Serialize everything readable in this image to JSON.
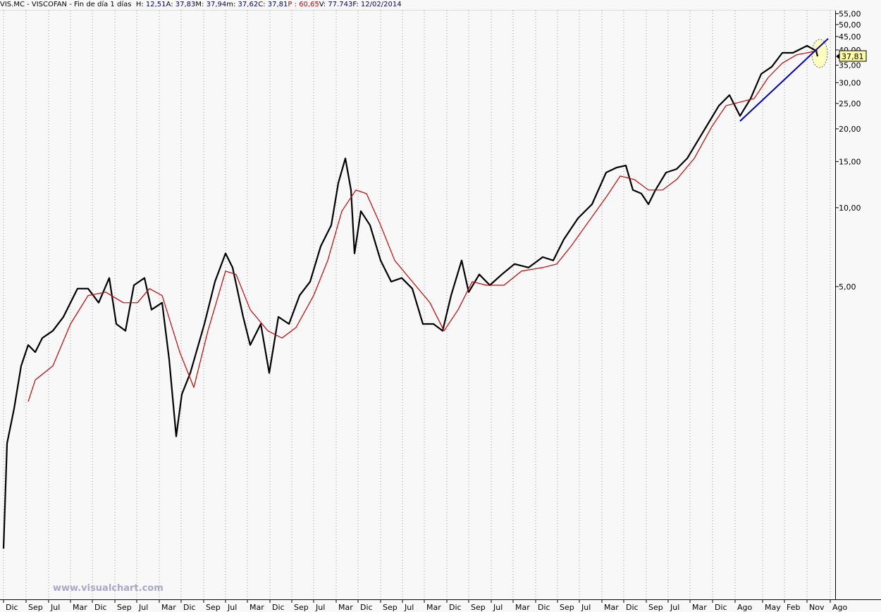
{
  "chart_data": {
    "type": "line",
    "title": "VIS.MC - VISCOFAN - Fin de día 1 días",
    "header_items": [
      {
        "label": "H:",
        "value": "12,51"
      },
      {
        "label": "A:",
        "value": "37,83"
      },
      {
        "label": "M:",
        "value": "37,94"
      },
      {
        "label": "m:",
        "value": "37,62"
      },
      {
        "label": "C:",
        "value": "37,81"
      },
      {
        "label": "P :",
        "value": "60,65"
      },
      {
        "label": "V:",
        "value": "77.743"
      },
      {
        "label": "F:",
        "value": "12/02/2014"
      }
    ],
    "watermark": "www.visualchart.com",
    "log_scale": true,
    "xlim": [
      0,
      1185
    ],
    "ylim": [
      0.32,
      57.6
    ],
    "yticks": [
      {
        "value": 55,
        "label": "55,00"
      },
      {
        "value": 50,
        "label": "50,00"
      },
      {
        "value": 45,
        "label": "45,00"
      },
      {
        "value": 40,
        "label": "40,00"
      },
      {
        "value": 35,
        "label": "35,00"
      },
      {
        "value": 30,
        "label": "30,00"
      },
      {
        "value": 25,
        "label": "25,00"
      },
      {
        "value": 20,
        "label": "20,00"
      },
      {
        "value": 15,
        "label": "15,00"
      },
      {
        "value": 10,
        "label": "10,00"
      },
      {
        "value": 5,
        "label": "5,00"
      }
    ],
    "xticks": [
      {
        "value": 5,
        "label": "Dic"
      },
      {
        "value": 37,
        "label": "Sep"
      },
      {
        "value": 69,
        "label": "Jul"
      },
      {
        "value": 100,
        "label": "Mar"
      },
      {
        "value": 131,
        "label": "Dic"
      },
      {
        "value": 163,
        "label": "Sep"
      },
      {
        "value": 194,
        "label": "Jul"
      },
      {
        "value": 226,
        "label": "Mar"
      },
      {
        "value": 257,
        "label": "Dic"
      },
      {
        "value": 289,
        "label": "Sep"
      },
      {
        "value": 320,
        "label": "Jul"
      },
      {
        "value": 351,
        "label": "Mar"
      },
      {
        "value": 383,
        "label": "Dic"
      },
      {
        "value": 414,
        "label": "Sep"
      },
      {
        "value": 445,
        "label": "Jul"
      },
      {
        "value": 477,
        "label": "Mar"
      },
      {
        "value": 508,
        "label": "Dic"
      },
      {
        "value": 540,
        "label": "Sep"
      },
      {
        "value": 571,
        "label": "Jul"
      },
      {
        "value": 602,
        "label": "Mar"
      },
      {
        "value": 634,
        "label": "Dic"
      },
      {
        "value": 665,
        "label": "Sep"
      },
      {
        "value": 697,
        "label": "Jul"
      },
      {
        "value": 728,
        "label": "Mar"
      },
      {
        "value": 760,
        "label": "Dic"
      },
      {
        "value": 791,
        "label": "Sep"
      },
      {
        "value": 822,
        "label": "Jul"
      },
      {
        "value": 854,
        "label": "Mar"
      },
      {
        "value": 885,
        "label": "Dic"
      },
      {
        "value": 917,
        "label": "Sep"
      },
      {
        "value": 948,
        "label": "Jul"
      },
      {
        "value": 979,
        "label": "Mar"
      },
      {
        "value": 1011,
        "label": "Dic"
      },
      {
        "value": 1043,
        "label": "Ago"
      },
      {
        "value": 1082,
        "label": "May"
      },
      {
        "value": 1113,
        "label": "Feb"
      },
      {
        "value": 1145,
        "label": "Nov"
      },
      {
        "value": 1178,
        "label": "Ago"
      }
    ],
    "grid": true,
    "series": [
      {
        "color": "#000000",
        "x": [
          5,
          10,
          20,
          30,
          40,
          50,
          60,
          75,
          90,
          110,
          125,
          140,
          155,
          165,
          178,
          190,
          205,
          215,
          230,
          240,
          250,
          258,
          270,
          290,
          305,
          320,
          330,
          345,
          355,
          370,
          382,
          395,
          410,
          425,
          440,
          455,
          470,
          480,
          490,
          498,
          503,
          512,
          525,
          540,
          555,
          570,
          585,
          600,
          615,
          628,
          640,
          655,
          665,
          680,
          695,
          712,
          730,
          750,
          770,
          785,
          800,
          820,
          840,
          860,
          875,
          888,
          898,
          910,
          920,
          930,
          945,
          960,
          975,
          990,
          1005,
          1020,
          1035,
          1050,
          1065,
          1080,
          1095,
          1110,
          1125,
          1145,
          1158,
          1160
        ],
        "values": [
          0.5,
          1.26,
          1.71,
          2.49,
          2.99,
          2.81,
          3.18,
          3.39,
          3.83,
          4.91,
          4.91,
          4.34,
          5.39,
          3.6,
          3.39,
          5.06,
          5.39,
          4.08,
          4.34,
          2.64,
          1.34,
          1.94,
          2.34,
          3.6,
          5.22,
          6.69,
          5.91,
          3.83,
          2.99,
          3.6,
          2.34,
          3.83,
          3.6,
          4.62,
          5.22,
          7.12,
          8.57,
          12.42,
          15.42,
          11.68,
          6.69,
          9.7,
          8.57,
          6.29,
          5.22,
          5.39,
          4.91,
          3.6,
          3.6,
          3.39,
          4.62,
          6.29,
          4.76,
          5.56,
          5.06,
          5.56,
          6.1,
          5.91,
          6.48,
          6.29,
          7.57,
          9.11,
          10.31,
          13.62,
          14.23,
          14.49,
          11.68,
          11.32,
          10.31,
          11.68,
          13.62,
          14.05,
          15.42,
          18.0,
          21.0,
          24.5,
          26.9,
          22.4,
          26.1,
          32.4,
          34.5,
          39.0,
          39.0,
          41.5,
          39.7,
          37.81
        ]
      },
      {
        "color": "#cc0000",
        "x": [
          40,
          50,
          75,
          100,
          125,
          150,
          175,
          195,
          212,
          230,
          255,
          275,
          295,
          320,
          335,
          355,
          380,
          400,
          420,
          445,
          465,
          485,
          505,
          520,
          540,
          560,
          585,
          610,
          630,
          650,
          670,
          690,
          715,
          740,
          770,
          790,
          810,
          835,
          860,
          880,
          900,
          920,
          940,
          960,
          985,
          1010,
          1030,
          1050,
          1070,
          1090,
          1110,
          1130,
          1160
        ],
        "values": [
          1.82,
          2.2,
          2.49,
          3.6,
          4.62,
          4.76,
          4.34,
          4.34,
          4.91,
          4.62,
          2.81,
          2.06,
          3.39,
          5.73,
          5.56,
          4.08,
          3.39,
          3.18,
          3.49,
          4.62,
          6.29,
          9.7,
          11.68,
          11.32,
          8.57,
          6.29,
          5.22,
          4.34,
          3.39,
          4.08,
          5.22,
          5.06,
          5.06,
          5.73,
          5.91,
          6.1,
          7.12,
          8.84,
          10.97,
          13.21,
          12.81,
          11.68,
          11.68,
          12.81,
          15.42,
          20.4,
          24.5,
          25.3,
          26.1,
          31.4,
          35.6,
          38.3,
          39.7
        ]
      }
    ],
    "trendline": {
      "color": "#0000cc",
      "x": [
        1050,
        1175
      ],
      "values": [
        21.4,
        44.2
      ]
    },
    "last_price": {
      "value": 37.81,
      "label": "37,81"
    }
  }
}
